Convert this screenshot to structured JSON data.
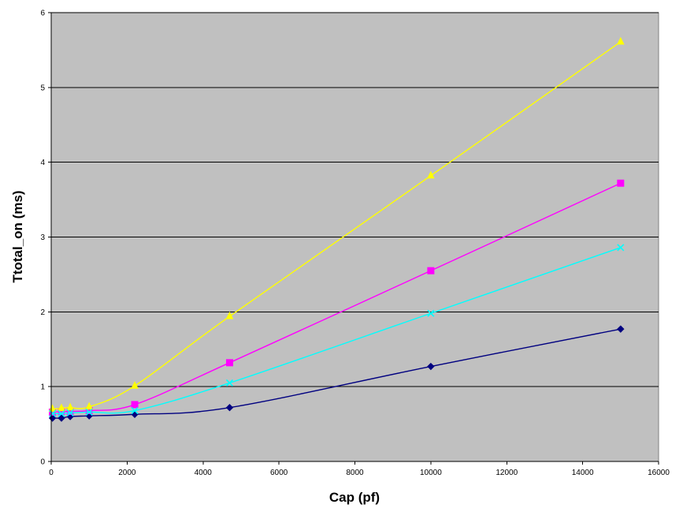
{
  "chart_data": {
    "type": "line",
    "title": "",
    "xlabel": "Cap (pf)",
    "ylabel": "Ttotal_on (ms)",
    "xlim": [
      0,
      16000
    ],
    "ylim": [
      0,
      6
    ],
    "x_ticks": [
      0,
      2000,
      4000,
      6000,
      8000,
      10000,
      12000,
      14000,
      16000
    ],
    "y_ticks": [
      0,
      1,
      2,
      3,
      4,
      5,
      6
    ],
    "grid": "horizontal",
    "plot_background": "#c0c0c0",
    "legend": "none",
    "smoothed": true,
    "series": [
      {
        "color": "#000080",
        "marker": "diamond",
        "points": [
          [
            33,
            0.58
          ],
          [
            270,
            0.58
          ],
          [
            500,
            0.6
          ],
          [
            1000,
            0.61
          ],
          [
            2200,
            0.63
          ],
          [
            4700,
            0.72
          ],
          [
            10000,
            1.27
          ],
          [
            15000,
            1.77
          ]
        ]
      },
      {
        "color": "#ff00ff",
        "marker": "square",
        "points": [
          [
            33,
            0.66
          ],
          [
            270,
            0.67
          ],
          [
            500,
            0.67
          ],
          [
            1000,
            0.68
          ],
          [
            2200,
            0.76
          ],
          [
            4700,
            1.32
          ],
          [
            10000,
            2.55
          ],
          [
            15000,
            3.72
          ]
        ]
      },
      {
        "color": "#ffff00",
        "marker": "triangle",
        "points": [
          [
            33,
            0.7
          ],
          [
            270,
            0.71
          ],
          [
            500,
            0.72
          ],
          [
            1000,
            0.73
          ],
          [
            2200,
            1.01
          ],
          [
            4700,
            1.94
          ],
          [
            10000,
            3.82
          ],
          [
            15000,
            5.61
          ]
        ]
      },
      {
        "color": "#00ffff",
        "marker": "x",
        "points": [
          [
            33,
            0.64
          ],
          [
            270,
            0.64
          ],
          [
            500,
            0.65
          ],
          [
            1000,
            0.66
          ],
          [
            2200,
            0.68
          ],
          [
            4700,
            1.05
          ],
          [
            10000,
            1.98
          ],
          [
            15000,
            2.86
          ]
        ]
      }
    ]
  }
}
